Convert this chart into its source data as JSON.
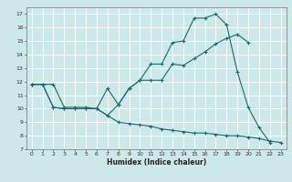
{
  "xlabel": "Humidex (Indice chaleur)",
  "bg_color": "#cce8e8",
  "grid_color": "#ffffff",
  "line_color": "#1a6b6b",
  "xlim": [
    -0.5,
    23.5
  ],
  "ylim": [
    7,
    17.5
  ],
  "yticks": [
    7,
    8,
    9,
    10,
    11,
    12,
    13,
    14,
    15,
    16,
    17
  ],
  "xticks": [
    0,
    1,
    2,
    3,
    4,
    5,
    6,
    7,
    8,
    9,
    10,
    11,
    12,
    13,
    14,
    15,
    16,
    17,
    18,
    19,
    20,
    21,
    22,
    23
  ],
  "line1_x": [
    0,
    1,
    2,
    3,
    4,
    5,
    6,
    7,
    8,
    9,
    10,
    11,
    12,
    13,
    14,
    15,
    16,
    17,
    18,
    19,
    20,
    21,
    22
  ],
  "line1_y": [
    11.8,
    11.8,
    11.8,
    10.1,
    10.1,
    10.1,
    10.0,
    9.5,
    10.3,
    11.5,
    12.1,
    13.3,
    13.3,
    14.9,
    15.0,
    16.7,
    16.7,
    17.0,
    16.2,
    12.7,
    10.1,
    8.6,
    7.5
  ],
  "line2_x": [
    0,
    1,
    2,
    3,
    4,
    5,
    6,
    7,
    8,
    9,
    10,
    11,
    12,
    13,
    14,
    15,
    16,
    17,
    18,
    19,
    20
  ],
  "line2_y": [
    11.8,
    11.8,
    10.1,
    10.0,
    10.0,
    10.0,
    10.0,
    11.5,
    10.3,
    11.5,
    12.1,
    12.1,
    12.1,
    13.3,
    13.2,
    13.7,
    14.2,
    14.8,
    15.2,
    15.5,
    14.9
  ],
  "line3_x": [
    0,
    1,
    2,
    3,
    4,
    5,
    6,
    7,
    8,
    9,
    10,
    11,
    12,
    13,
    14,
    15,
    16,
    17,
    18,
    19,
    20,
    21,
    22,
    23
  ],
  "line3_y": [
    11.8,
    11.8,
    10.1,
    10.0,
    10.0,
    10.0,
    10.0,
    9.5,
    9.0,
    8.9,
    8.8,
    8.7,
    8.5,
    8.4,
    8.3,
    8.2,
    8.2,
    8.1,
    8.0,
    8.0,
    7.9,
    7.8,
    7.6,
    7.5
  ]
}
